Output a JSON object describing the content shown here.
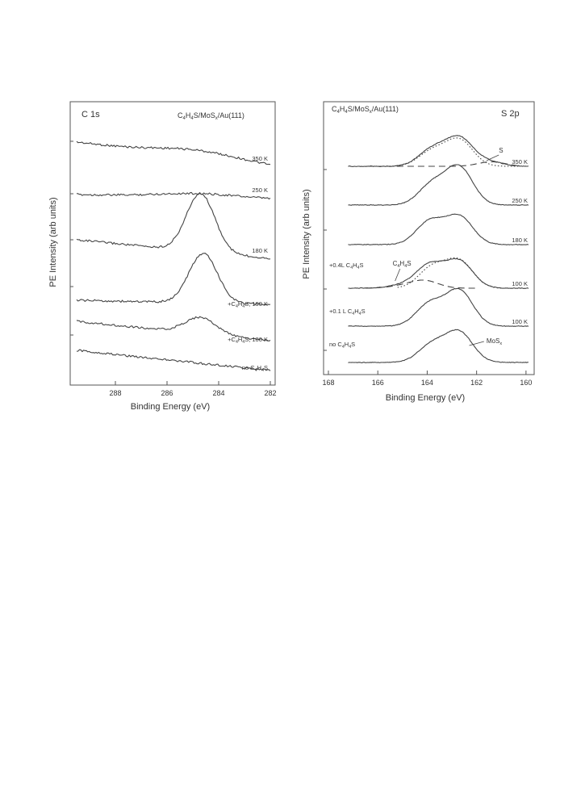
{
  "chart_data": [
    {
      "type": "line",
      "panel_label": "C 1s",
      "system_label": {
        "main": "C",
        "s1": "4",
        "m1": "H",
        "s2": "4",
        "m2": "S/MoS",
        "s3": "x",
        "m3": "/Au(111)"
      },
      "xlabel": "Binding Energy  (eV)",
      "ylabel": "PE  Intensity  (arb units)",
      "x_ticks": [
        288,
        286,
        284,
        282
      ],
      "xlim": [
        289.5,
        282
      ],
      "series": [
        {
          "label": "350 K",
          "peak": 284.8,
          "amp": 0.12,
          "width": 1.6,
          "offset": 0.0
        },
        {
          "label": "250 K",
          "peak": 284.8,
          "amp": 0.07,
          "width": 1.6,
          "offset": 0.0
        },
        {
          "label": "180 K",
          "peak": 284.7,
          "amp": 1.0,
          "width": 0.55,
          "offset": 0.0
        },
        {
          "label": {
            "pre": "+C",
            "s1": "4",
            "m1": "H",
            "s2": "4",
            "m2": "S, 100 K"
          },
          "peak": 284.6,
          "amp": 0.85,
          "width": 0.55,
          "offset": 0.0
        },
        {
          "label": {
            "pre": "+C",
            "s1": "4",
            "m1": "H",
            "s2": "4",
            "m2": "S, 100 K"
          },
          "peak": 284.7,
          "amp": 0.28,
          "width": 0.6,
          "offset": 0.0
        },
        {
          "label": {
            "pre": "no C",
            "s1": "4",
            "m1": "H",
            "s2": "4",
            "m2": "S"
          },
          "peak": 284.8,
          "amp": 0.0,
          "width": 1.0,
          "offset": 0.0
        }
      ]
    },
    {
      "type": "line",
      "panel_label": "S 2p",
      "system_label": {
        "main": "C",
        "s1": "4",
        "m1": "H",
        "s2": "4",
        "m2": "S/MoS",
        "s3": "x",
        "m3": "/Au(111)"
      },
      "xlabel": "Binding Energy  (eV)",
      "ylabel": "PE  Intensity  (arb units)",
      "x_ticks": [
        168,
        166,
        164,
        162,
        160
      ],
      "xlim": [
        168,
        159.8
      ],
      "series": [
        {
          "label": "350 K",
          "left_label": null,
          "peaks": [
            [
              163.8,
              0.45
            ],
            [
              162.7,
              0.75
            ],
            [
              161.5,
              0.12
            ]
          ]
        },
        {
          "label": "250 K",
          "left_label": null,
          "peaks": [
            [
              163.8,
              0.55
            ],
            [
              162.7,
              1.0
            ]
          ]
        },
        {
          "label": "180 K",
          "left_label": null,
          "peaks": [
            [
              163.9,
              0.62
            ],
            [
              162.7,
              0.75
            ]
          ]
        },
        {
          "label": "100 K",
          "left_label": {
            "pre": "+0.4L  C",
            "s1": "4",
            "m1": "H",
            "s2": "4",
            "m2": "S"
          },
          "peaks": [
            [
              163.9,
              0.62
            ],
            [
              162.7,
              0.72
            ],
            [
              165.0,
              0.08
            ]
          ]
        },
        {
          "label": "100 K",
          "left_label": {
            "pre": "+0.1 L  C",
            "s1": "4",
            "m1": "H",
            "s2": "4",
            "m2": "S"
          },
          "peaks": [
            [
              163.9,
              0.6
            ],
            [
              162.7,
              0.95
            ]
          ]
        },
        {
          "label": null,
          "left_label": {
            "pre": "no C",
            "s1": "4",
            "m1": "H",
            "s2": "4",
            "m2": "S"
          },
          "peaks": [
            [
              163.8,
              0.48
            ],
            [
              162.7,
              0.8
            ]
          ]
        }
      ],
      "annotations": [
        {
          "text": "S",
          "sub": "",
          "x": 161.3
        },
        {
          "text": "C",
          "sub": "4",
          "tail": "H",
          "sub2": "4",
          "tail2": "S",
          "x": 165.0
        },
        {
          "text": "MoS",
          "sub": "x",
          "x": 162.2
        }
      ]
    }
  ]
}
